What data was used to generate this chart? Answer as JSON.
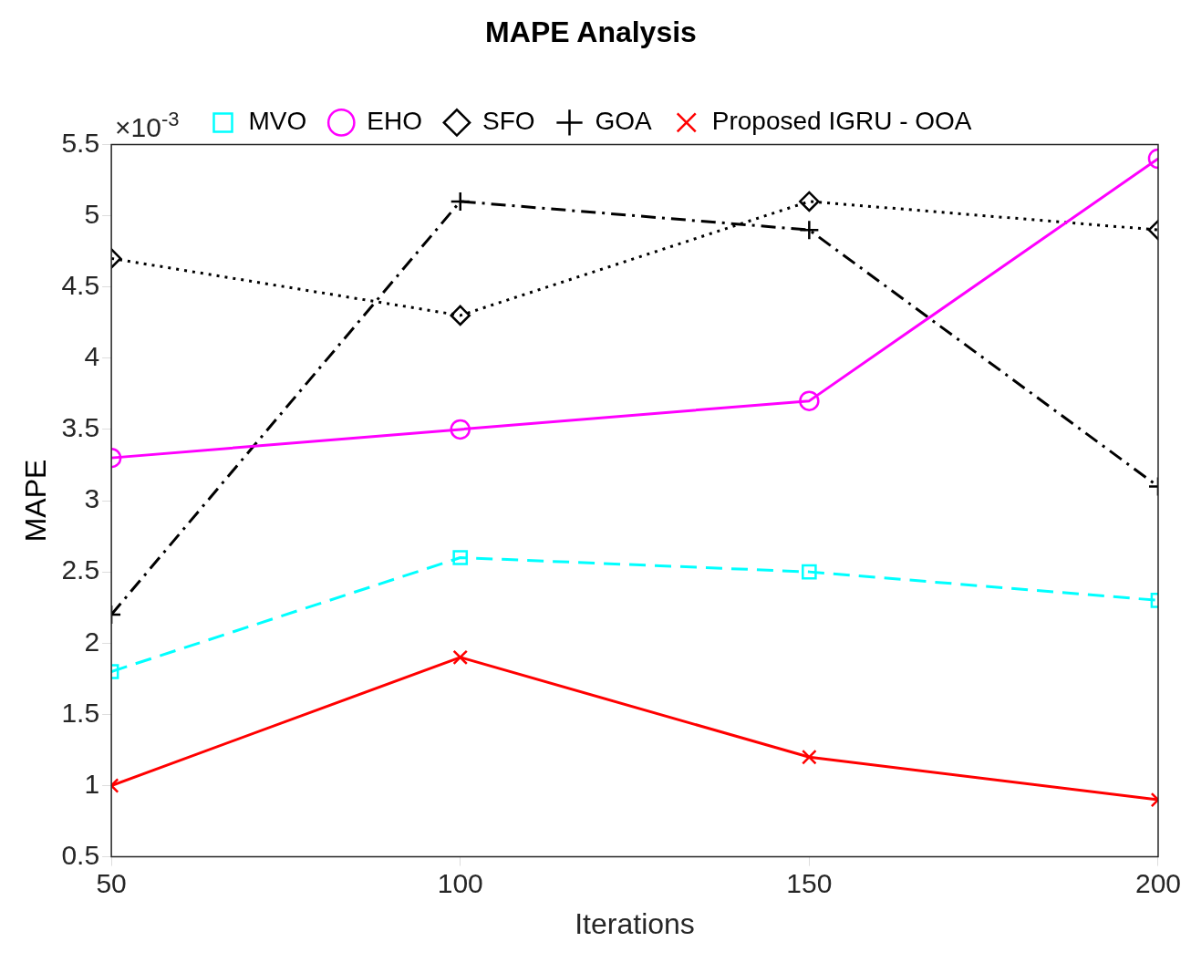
{
  "chart_data": {
    "type": "line",
    "title": "MAPE Analysis",
    "xlabel": "Iterations",
    "ylabel": "MAPE",
    "annotations": [
      "×10$^{-3}$"
    ],
    "x": [
      50,
      100,
      150,
      200
    ],
    "xlim": [
      50,
      200
    ],
    "xticks": [
      50,
      100,
      150,
      200
    ],
    "ylim": [
      0.5,
      5.5
    ],
    "yticks": [
      0.5,
      1,
      1.5,
      2,
      2.5,
      3,
      3.5,
      4,
      4.5,
      5,
      5.5
    ],
    "grid": false,
    "legend": "top",
    "series": [
      {
        "name": "MVO",
        "color": "#00ffff",
        "values": [
          1.8,
          2.6,
          2.5,
          2.3
        ],
        "marker": "square",
        "line_style": "dashed"
      },
      {
        "name": "EHO",
        "color": "#ff00ff",
        "values": [
          3.3,
          3.5,
          3.7,
          5.4
        ],
        "marker": "circle",
        "line_style": "solid"
      },
      {
        "name": "SFO",
        "color": "#000000",
        "values": [
          4.7,
          4.3,
          5.1,
          4.9
        ],
        "marker": "diamond",
        "line_style": "dotted"
      },
      {
        "name": "GOA",
        "color": "#000000",
        "values": [
          2.2,
          5.1,
          4.9,
          3.1
        ],
        "marker": "cross",
        "line_style": "dashdot"
      },
      {
        "name": "Proposed IGRU - OOA",
        "color": "#ff0000",
        "values": [
          1.0,
          1.9,
          1.2,
          0.9
        ],
        "marker": "x",
        "line_style": "solid"
      }
    ]
  }
}
